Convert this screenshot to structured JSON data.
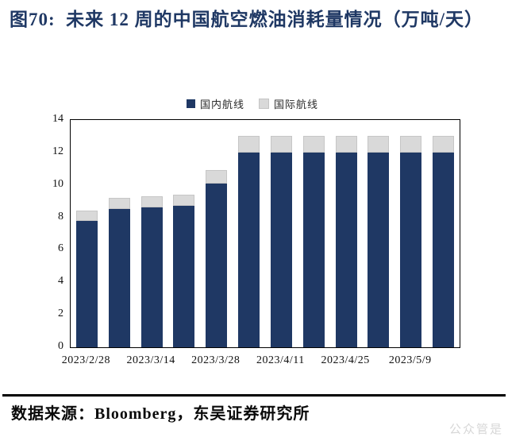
{
  "figure": {
    "title": "图70:  未来 12 周的中国航空燃油消耗量情况（万吨/天）",
    "source_text": "数据来源：Bloomberg，东吴证券研究所",
    "watermark_text": "公众管是",
    "accent_color": "#1f3864"
  },
  "chart_data": {
    "type": "bar",
    "stacked": true,
    "title": "未来 12 周的中国航空燃油消耗量情况（万吨/天）",
    "n_bars": 12,
    "x_tick_labels": [
      "2023/2/28",
      "2023/3/14",
      "2023/3/28",
      "2023/4/11",
      "2023/4/25",
      "2023/5/9"
    ],
    "x_tick_bar_indices": [
      0,
      2,
      4,
      6,
      8,
      10
    ],
    "series": [
      {
        "name": "国内航线",
        "color": "#1f3864",
        "values": [
          7.8,
          8.5,
          8.6,
          8.7,
          10.1,
          12,
          12,
          12,
          12,
          12,
          12,
          12
        ]
      },
      {
        "name": "国际航线",
        "color": "#d9d9d9",
        "values": [
          0.6,
          0.7,
          0.7,
          0.7,
          0.8,
          1,
          1,
          1,
          1,
          1,
          1,
          1
        ]
      }
    ],
    "ylim": [
      0,
      14
    ],
    "yticks": [
      0,
      2,
      4,
      6,
      8,
      10,
      12,
      14
    ],
    "grid": false,
    "legend_position": "top-center",
    "xlabel": "",
    "ylabel": ""
  }
}
